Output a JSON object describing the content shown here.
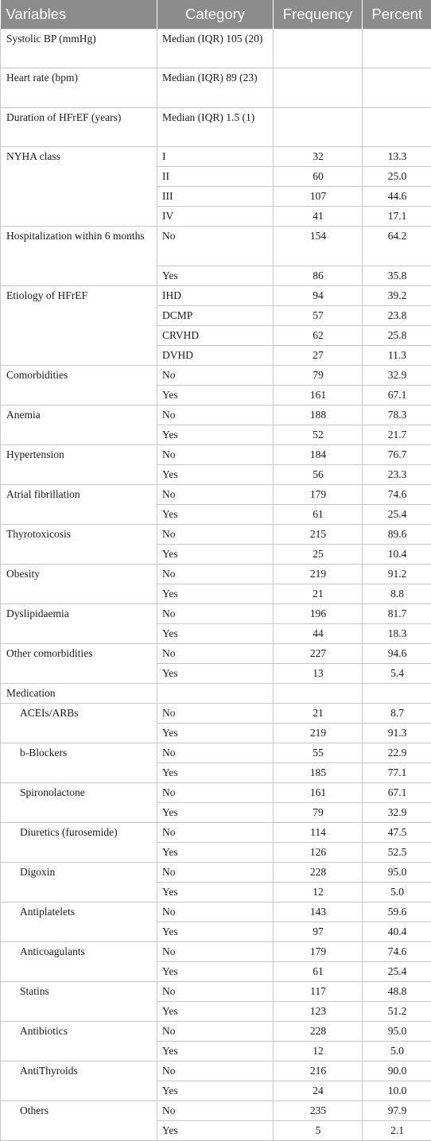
{
  "table": {
    "headers": [
      "Variables",
      "Category",
      "Frequency",
      "Percent"
    ],
    "groups": [
      {
        "variable": "Systolic BP (mmHg)",
        "rows": [
          {
            "category": "Median (IQR) 105 (20)",
            "frequency": "",
            "percent": ""
          }
        ]
      },
      {
        "variable": "Heart rate (bpm)",
        "rows": [
          {
            "category": "Median (IQR) 89 (23)",
            "frequency": "",
            "percent": ""
          }
        ]
      },
      {
        "variable": "Duration of HFrEF (years)",
        "rows": [
          {
            "category": "Median (IQR) 1.5 (1)",
            "frequency": "",
            "percent": ""
          }
        ]
      },
      {
        "variable": "NYHA class",
        "rows": [
          {
            "category": "I",
            "frequency": "32",
            "percent": "13.3"
          },
          {
            "category": "II",
            "frequency": "60",
            "percent": "25.0"
          },
          {
            "category": "III",
            "frequency": "107",
            "percent": "44.6"
          },
          {
            "category": "IV",
            "frequency": "41",
            "percent": "17.1"
          }
        ]
      },
      {
        "variable": "Hospitalization within 6 months",
        "rows": [
          {
            "category": "No",
            "frequency": "154",
            "percent": "64.2"
          },
          {
            "category": "Yes",
            "frequency": "86",
            "percent": "35.8"
          }
        ]
      },
      {
        "variable": "Etiology of HFrEF",
        "rows": [
          {
            "category": "IHD",
            "frequency": "94",
            "percent": "39.2"
          },
          {
            "category": "DCMP",
            "frequency": "57",
            "percent": "23.8"
          },
          {
            "category": "CRVHD",
            "frequency": "62",
            "percent": "25.8"
          },
          {
            "category": "DVHD",
            "frequency": "27",
            "percent": "11.3"
          }
        ]
      },
      {
        "variable": "Comorbidities",
        "rows": [
          {
            "category": "No",
            "frequency": "79",
            "percent": "32.9"
          },
          {
            "category": "Yes",
            "frequency": "161",
            "percent": "67.1"
          }
        ]
      },
      {
        "variable": "Anemia",
        "rows": [
          {
            "category": "No",
            "frequency": "188",
            "percent": "78.3"
          },
          {
            "category": "Yes",
            "frequency": "52",
            "percent": "21.7"
          }
        ]
      },
      {
        "variable": "Hypertension",
        "rows": [
          {
            "category": "No",
            "frequency": "184",
            "percent": "76.7"
          },
          {
            "category": "Yes",
            "frequency": "56",
            "percent": "23.3"
          }
        ]
      },
      {
        "variable": "Atrial fibrillation",
        "rows": [
          {
            "category": "No",
            "frequency": "179",
            "percent": "74.6"
          },
          {
            "category": "Yes",
            "frequency": "61",
            "percent": "25.4"
          }
        ]
      },
      {
        "variable": "Thyrotoxicosis",
        "rows": [
          {
            "category": "No",
            "frequency": "215",
            "percent": "89.6"
          },
          {
            "category": "Yes",
            "frequency": "25",
            "percent": "10.4"
          }
        ]
      },
      {
        "variable": "Obesity",
        "rows": [
          {
            "category": "No",
            "frequency": "219",
            "percent": "91.2"
          },
          {
            "category": "Yes",
            "frequency": "21",
            "percent": "8.8"
          }
        ]
      },
      {
        "variable": "Dyslipidaemia",
        "rows": [
          {
            "category": "No",
            "frequency": "196",
            "percent": "81.7"
          },
          {
            "category": "Yes",
            "frequency": "44",
            "percent": "18.3"
          }
        ]
      },
      {
        "variable": "Other comorbidities",
        "rows": [
          {
            "category": "No",
            "frequency": "227",
            "percent": "94.6"
          },
          {
            "category": "Yes",
            "frequency": "13",
            "percent": "5.4"
          }
        ]
      },
      {
        "variable": "Medication",
        "rows": [
          {
            "category": "",
            "frequency": "",
            "percent": ""
          }
        ]
      },
      {
        "variable": "ACEIs/ARBs",
        "sub": true,
        "rows": [
          {
            "category": "No",
            "frequency": "21",
            "percent": "8.7"
          },
          {
            "category": "Yes",
            "frequency": "219",
            "percent": "91.3"
          }
        ]
      },
      {
        "variable": "b-Blockers",
        "sub": true,
        "rows": [
          {
            "category": "No",
            "frequency": "55",
            "percent": "22.9"
          },
          {
            "category": "Yes",
            "frequency": "185",
            "percent": "77.1"
          }
        ]
      },
      {
        "variable": "Spironolactone",
        "sub": true,
        "rows": [
          {
            "category": "No",
            "frequency": "161",
            "percent": "67.1"
          },
          {
            "category": "Yes",
            "frequency": "79",
            "percent": "32.9"
          }
        ]
      },
      {
        "variable": "Diuretics (furosemide)",
        "sub": true,
        "rows": [
          {
            "category": "No",
            "frequency": "114",
            "percent": "47.5"
          },
          {
            "category": "Yes",
            "frequency": "126",
            "percent": "52.5"
          }
        ]
      },
      {
        "variable": "Digoxin",
        "sub": true,
        "rows": [
          {
            "category": "No",
            "frequency": "228",
            "percent": "95.0"
          },
          {
            "category": "Yes",
            "frequency": "12",
            "percent": "5.0"
          }
        ]
      },
      {
        "variable": "Antiplatelets",
        "sub": true,
        "rows": [
          {
            "category": "No",
            "frequency": "143",
            "percent": "59.6"
          },
          {
            "category": "Yes",
            "frequency": "97",
            "percent": "40.4"
          }
        ]
      },
      {
        "variable": "Anticoagulants",
        "sub": true,
        "rows": [
          {
            "category": "No",
            "frequency": "179",
            "percent": "74.6"
          },
          {
            "category": "Yes",
            "frequency": "61",
            "percent": "25.4"
          }
        ]
      },
      {
        "variable": "Statins",
        "sub": true,
        "rows": [
          {
            "category": "No",
            "frequency": "117",
            "percent": "48.8"
          },
          {
            "category": "Yes",
            "frequency": "123",
            "percent": "51.2"
          }
        ]
      },
      {
        "variable": "Antibiotics",
        "sub": true,
        "rows": [
          {
            "category": "No",
            "frequency": "228",
            "percent": "95.0"
          },
          {
            "category": "Yes",
            "frequency": "12",
            "percent": "5.0"
          }
        ]
      },
      {
        "variable": "AntiThyroids",
        "sub": true,
        "rows": [
          {
            "category": "No",
            "frequency": "216",
            "percent": "90.0"
          },
          {
            "category": "Yes",
            "frequency": "24",
            "percent": "10.0"
          }
        ]
      },
      {
        "variable": "Others",
        "sub": true,
        "rows": [
          {
            "category": "No",
            "frequency": "235",
            "percent": "97.9"
          },
          {
            "category": "Yes",
            "frequency": "5",
            "percent": "2.1"
          }
        ]
      }
    ]
  }
}
